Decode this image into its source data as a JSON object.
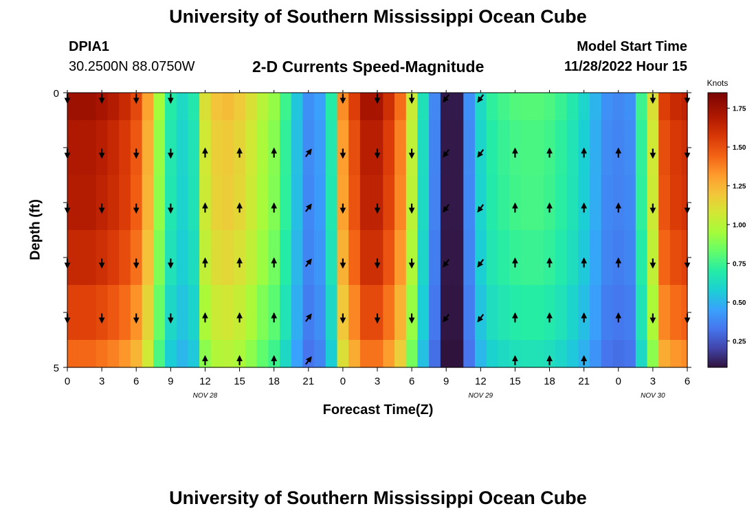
{
  "header": {
    "title": "University of Southern Mississippi Ocean Cube",
    "station_id": "DPIA1",
    "station_coords": "30.2500N  88.0750W",
    "plot_title": "2-D Currents Speed-Magnitude",
    "model_start_label": "Model Start Time",
    "model_start_value": "11/28/2022 Hour 15"
  },
  "footer": {
    "title": "University of Southern Mississippi Ocean Cube"
  },
  "chart_data": {
    "type": "heatmap",
    "title": "2-D Currents Speed-Magnitude",
    "xlabel": "Forecast Time(Z)",
    "ylabel": "Depth (ft)",
    "x_hours": [
      0,
      1,
      2,
      3,
      4,
      5,
      6,
      7,
      8,
      9,
      10,
      11,
      12,
      13,
      14,
      15,
      16,
      17,
      18,
      19,
      20,
      21,
      22,
      23,
      24,
      25,
      26,
      27,
      28,
      29,
      30,
      31,
      32,
      33,
      34,
      35,
      36,
      37,
      38,
      39,
      40,
      41,
      42,
      43,
      44,
      45,
      46,
      47,
      48,
      49,
      50,
      51,
      52,
      53,
      54
    ],
    "depth_levels": [
      0,
      1,
      2,
      3,
      4,
      5
    ],
    "ylim": [
      5,
      0
    ],
    "xlim": [
      0,
      54
    ],
    "x_ticks": [
      0,
      3,
      6,
      9,
      12,
      15,
      18,
      21,
      24,
      27,
      30,
      33,
      36,
      39,
      42,
      45,
      48,
      51,
      54
    ],
    "x_tick_labels": [
      "0",
      "3",
      "6",
      "9",
      "12",
      "15",
      "18",
      "21",
      "0",
      "3",
      "6",
      "9",
      "12",
      "15",
      "18",
      "21",
      "0",
      "3",
      "6"
    ],
    "y_ticks": [
      0,
      1,
      2,
      3,
      4,
      5
    ],
    "y_tick_labels": [
      "0",
      "",
      "",
      "",
      "",
      "5"
    ],
    "date_labels": [
      {
        "hour": 12,
        "text": "NOV 28"
      },
      {
        "hour": 36,
        "text": "NOV 29"
      },
      {
        "hour": 51,
        "text": "NOV 30"
      }
    ],
    "speed_profile": [
      1.75,
      1.75,
      1.75,
      1.72,
      1.68,
      1.62,
      1.52,
      1.3,
      0.95,
      0.7,
      0.62,
      0.68,
      1.1,
      1.2,
      1.22,
      1.18,
      1.1,
      1.0,
      0.92,
      0.75,
      0.55,
      0.4,
      0.45,
      0.7,
      1.35,
      1.55,
      1.72,
      1.72,
      1.6,
      1.42,
      1.05,
      0.65,
      0.38,
      0.1,
      0.1,
      0.4,
      0.62,
      0.72,
      0.76,
      0.79,
      0.8,
      0.8,
      0.78,
      0.74,
      0.68,
      0.6,
      0.5,
      0.4,
      0.38,
      0.4,
      0.75,
      1.1,
      1.55,
      1.62,
      1.65
    ],
    "level_factors": [
      1.0,
      0.97,
      0.96,
      0.93,
      0.88,
      0.82
    ],
    "arrows": {
      "hours": [
        0,
        3,
        6,
        9,
        12,
        15,
        18,
        21,
        24,
        27,
        30,
        33,
        36,
        39,
        42,
        45,
        48,
        51,
        54
      ],
      "directions": [
        "s",
        "s",
        "s",
        "s",
        "n",
        "n",
        "n",
        "ne",
        "s",
        "s",
        "s",
        "sw",
        "sw",
        "n",
        "n",
        "n",
        "n",
        "s",
        "s"
      ],
      "blank_at_surface": [
        12,
        15,
        18,
        21,
        39,
        42,
        45,
        48
      ],
      "blank_at_bottom": [
        0,
        3,
        6,
        9,
        24,
        27,
        30,
        33,
        36,
        48,
        51,
        54
      ]
    },
    "colorbar": {
      "label": "Knots",
      "min": 0.08,
      "max": 1.85,
      "ticks": [
        0.25,
        0.5,
        0.75,
        1.0,
        1.25,
        1.5,
        1.75
      ],
      "tick_labels": [
        "0.25",
        "0.50",
        "0.75",
        "1.00",
        "1.25",
        "1.50",
        "1.75"
      ],
      "colormap": [
        [
          0.0,
          "#30123b"
        ],
        [
          0.07,
          "#4145ab"
        ],
        [
          0.14,
          "#4675ed"
        ],
        [
          0.21,
          "#39a2fc"
        ],
        [
          0.28,
          "#1bcfd4"
        ],
        [
          0.35,
          "#24eca6"
        ],
        [
          0.42,
          "#61fc6c"
        ],
        [
          0.49,
          "#a4fc3b"
        ],
        [
          0.56,
          "#d1e834"
        ],
        [
          0.63,
          "#f3c63a"
        ],
        [
          0.7,
          "#fe9b2d"
        ],
        [
          0.77,
          "#f36315"
        ],
        [
          0.84,
          "#d93806"
        ],
        [
          0.91,
          "#b11901"
        ],
        [
          1.0,
          "#7a0402"
        ]
      ]
    }
  }
}
